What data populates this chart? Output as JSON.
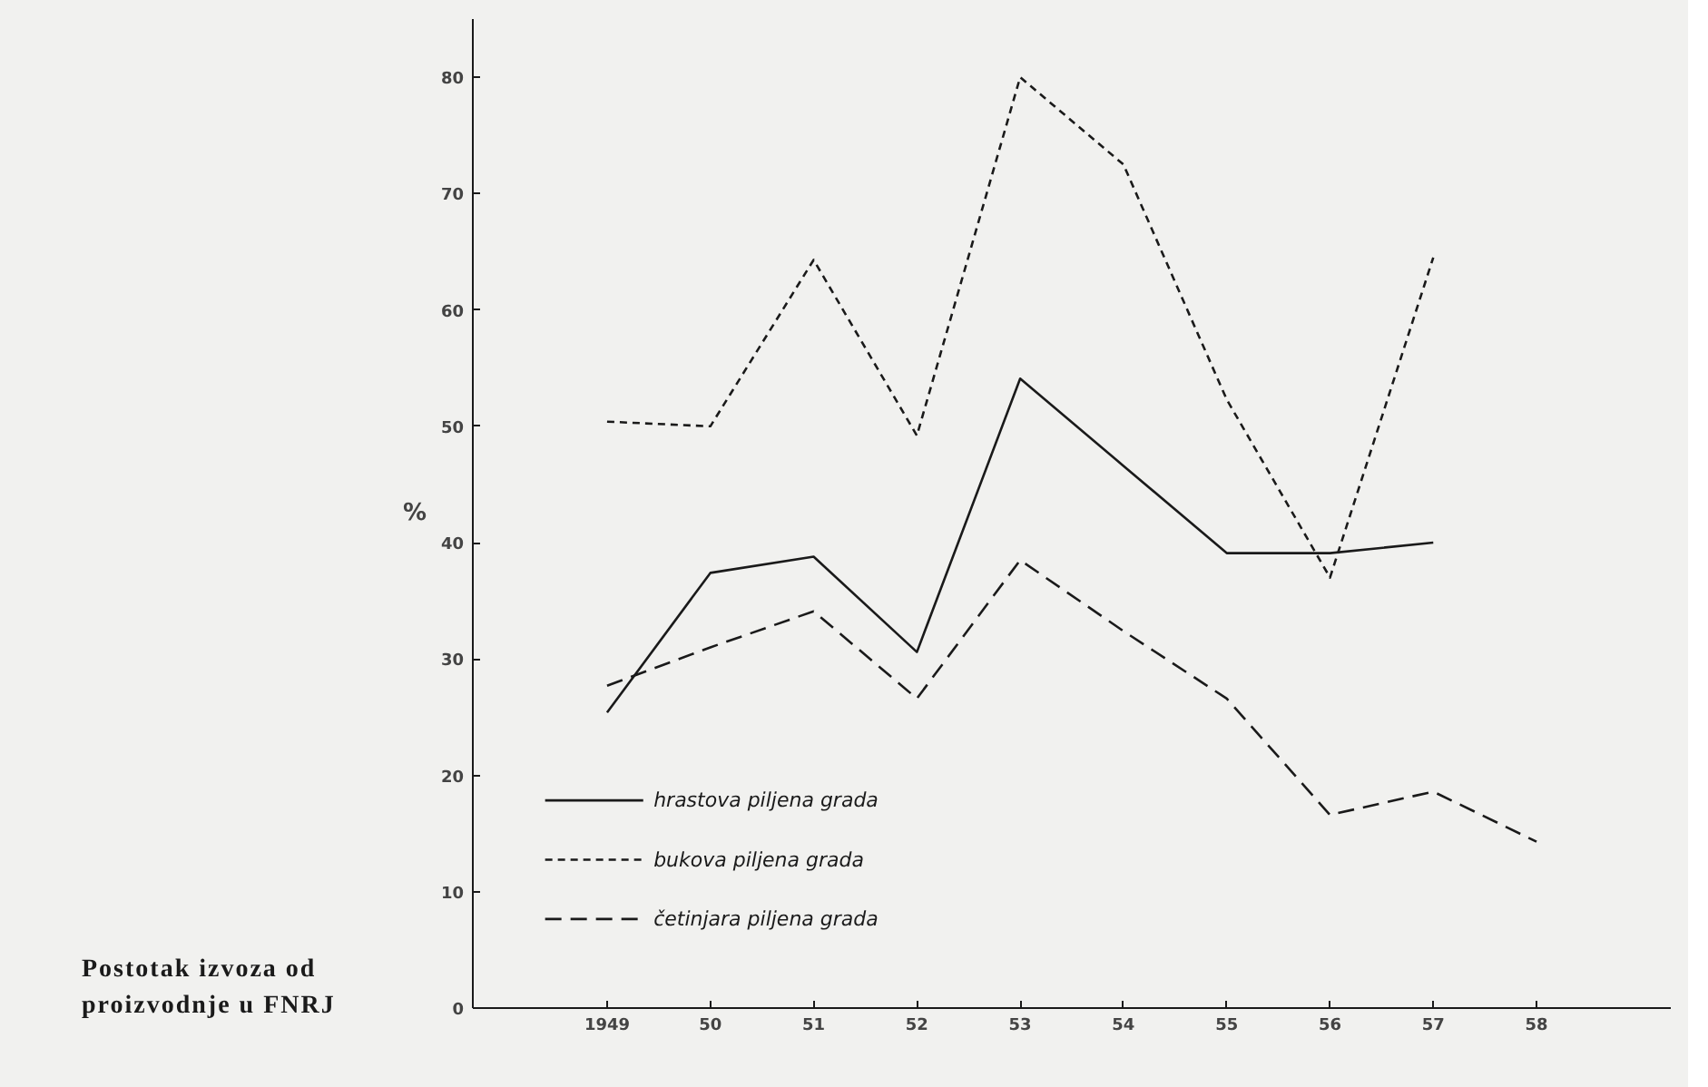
{
  "chart_data": {
    "type": "line",
    "ylabel": "%",
    "categories": [
      "1949",
      "50",
      "51",
      "52",
      "53",
      "54",
      "55",
      "56",
      "57",
      "58"
    ],
    "series": [
      {
        "name": "hrastova piljena grada",
        "color": "#1a1a1a",
        "line_style": "solid",
        "values": [
          25.4,
          37.4,
          38.8,
          30.6,
          54.1,
          46.6,
          39.1,
          39.1,
          40.0,
          null
        ]
      },
      {
        "name": "bukova piljena grada",
        "color": "#1a1a1a",
        "line_style": "dashed",
        "values": [
          50.4,
          50.0,
          64.3,
          49.2,
          80.0,
          72.5,
          52.3,
          37.0,
          64.5,
          null
        ]
      },
      {
        "name": "četinjara piljena grada",
        "color": "#1a1a1a",
        "line_style": "dashed",
        "values": [
          27.7,
          31.0,
          34.1,
          26.6,
          38.5,
          32.4,
          26.6,
          16.6,
          18.6,
          14.3
        ]
      }
    ],
    "ylim": [
      0,
      85
    ],
    "yticks": [
      0,
      10,
      20,
      30,
      40,
      50,
      60,
      70,
      80
    ],
    "grid": false,
    "legend": "bottom left",
    "annotations": [
      "Postotak izvoza od proizvodnje u FNRJ"
    ]
  }
}
